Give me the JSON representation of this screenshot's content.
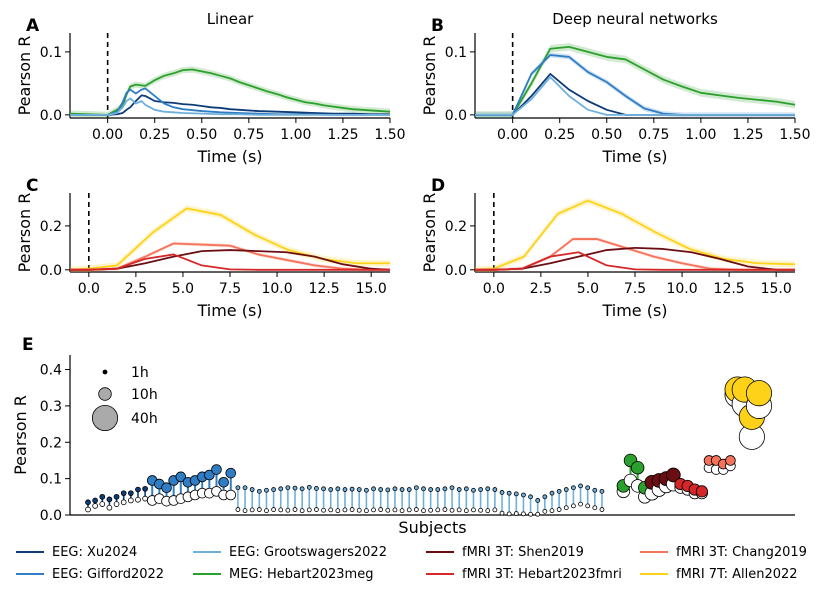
{
  "colors": {
    "EEG: Xu2024": "#0d3c78",
    "EEG: Gifford2022": "#2f7dc4",
    "EEG: Grootswagers2022": "#6fb0db",
    "MEG: Hebart2023meg": "#2ca02c",
    "fMRI 3T: Shen2019": "#6b0e14",
    "fMRI 3T: Hebart2023fmri": "#d62728",
    "fMRI 3T: Chang2019": "#f4735a",
    "fMRI 7T: Allen2022": "#ffd21a"
  },
  "legend": [
    "EEG: Xu2024",
    "EEG: Gifford2022",
    "EEG: Grootswagers2022",
    "MEG: Hebart2023meg",
    "fMRI 3T: Shen2019",
    "fMRI 3T: Hebart2023fmri",
    "fMRI 3T: Chang2019",
    "fMRI 7T: Allen2022"
  ],
  "chart_data": [
    {
      "panel": "A",
      "type": "line",
      "title": "Linear",
      "xlabel": "Time (s)",
      "ylabel": "Pearson R",
      "xlim": [
        -0.2,
        1.5
      ],
      "ylim": [
        -0.005,
        0.13
      ],
      "xticks": [
        0.0,
        0.25,
        0.5,
        0.75,
        1.0,
        1.25,
        1.5
      ],
      "xticklabels": [
        "0.00",
        "0.25",
        "0.50",
        "0.75",
        "1.00",
        "1.25",
        "1.50"
      ],
      "yticks": [
        0.0,
        0.1
      ],
      "yticklabels": [
        "0.0",
        "0.1"
      ],
      "vline": 0.0,
      "series": [
        {
          "name": "MEG: Hebart2023meg",
          "x": [
            -0.2,
            -0.1,
            0,
            0.05,
            0.08,
            0.1,
            0.12,
            0.15,
            0.2,
            0.25,
            0.3,
            0.35,
            0.4,
            0.45,
            0.5,
            0.55,
            0.6,
            0.65,
            0.7,
            0.75,
            0.8,
            0.85,
            0.9,
            0.95,
            1.0,
            1.05,
            1.1,
            1.15,
            1.2,
            1.25,
            1.3,
            1.35,
            1.4,
            1.45,
            1.5
          ],
          "y": [
            0.002,
            0.001,
            0,
            0.008,
            0.015,
            0.032,
            0.045,
            0.048,
            0.046,
            0.055,
            0.062,
            0.066,
            0.071,
            0.072,
            0.069,
            0.066,
            0.062,
            0.058,
            0.052,
            0.047,
            0.042,
            0.037,
            0.033,
            0.028,
            0.024,
            0.02,
            0.018,
            0.015,
            0.013,
            0.011,
            0.009,
            0.008,
            0.007,
            0.006,
            0.005
          ],
          "band": 0.005
        },
        {
          "name": "EEG: Xu2024",
          "x": [
            -0.2,
            -0.1,
            0,
            0.05,
            0.08,
            0.1,
            0.12,
            0.15,
            0.18,
            0.2,
            0.25,
            0.3,
            0.35,
            0.4,
            0.45,
            0.5,
            0.55,
            0.6,
            0.65,
            0.7,
            0.8,
            0.9,
            1.0,
            1.1,
            1.2,
            1.3,
            1.4,
            1.5
          ],
          "y": [
            0,
            0,
            0,
            0.001,
            0.003,
            0.008,
            0.012,
            0.022,
            0.031,
            0.03,
            0.022,
            0.02,
            0.019,
            0.017,
            0.016,
            0.014,
            0.012,
            0.011,
            0.009,
            0.008,
            0.006,
            0.005,
            0.004,
            0.003,
            0.002,
            0.002,
            0.001,
            0.001
          ]
        },
        {
          "name": "EEG: Gifford2022",
          "x": [
            -0.2,
            -0.1,
            0,
            0.05,
            0.08,
            0.1,
            0.12,
            0.15,
            0.18,
            0.2,
            0.25,
            0.3,
            0.35,
            0.4,
            0.5,
            0.6,
            0.7,
            0.8,
            0.9,
            1.0,
            1.2,
            1.5
          ],
          "y": [
            0,
            0,
            0,
            0.005,
            0.02,
            0.035,
            0.04,
            0.034,
            0.04,
            0.042,
            0.03,
            0.018,
            0.012,
            0.009,
            0.006,
            0.004,
            0.003,
            0.002,
            0.001,
            0.001,
            0,
            0
          ]
        },
        {
          "name": "EEG: Grootswagers2022",
          "x": [
            -0.2,
            -0.1,
            0,
            0.05,
            0.08,
            0.1,
            0.12,
            0.15,
            0.18,
            0.2,
            0.25,
            0.3,
            0.35,
            0.4,
            0.5,
            0.6,
            0.7,
            0.8,
            1.0,
            1.2,
            1.5
          ],
          "y": [
            0,
            0,
            0,
            0.003,
            0.012,
            0.022,
            0.026,
            0.018,
            0.022,
            0.016,
            0.008,
            0.005,
            0.004,
            0.003,
            0.002,
            0.001,
            0.001,
            0,
            0,
            0,
            0
          ]
        }
      ]
    },
    {
      "panel": "B",
      "type": "line",
      "title": "Deep neural networks",
      "xlabel": "Time (s)",
      "ylabel": "Pearson R",
      "xlim": [
        -0.2,
        1.5
      ],
      "ylim": [
        -0.005,
        0.13
      ],
      "xticks": [
        0.0,
        0.25,
        0.5,
        0.75,
        1.0,
        1.25,
        1.5
      ],
      "xticklabels": [
        "0.00",
        "0.25",
        "0.50",
        "0.75",
        "1.00",
        "1.25",
        "1.50"
      ],
      "yticks": [
        0.0,
        0.1
      ],
      "yticklabels": [
        "0.0",
        "0.1"
      ],
      "vline": 0.0,
      "series": [
        {
          "name": "MEG: Hebart2023meg",
          "x": [
            -0.2,
            0,
            0.1,
            0.2,
            0.3,
            0.4,
            0.5,
            0.6,
            0.7,
            0.8,
            0.9,
            1.0,
            1.1,
            1.2,
            1.3,
            1.4,
            1.5
          ],
          "y": [
            0,
            0,
            0.05,
            0.105,
            0.108,
            0.1,
            0.092,
            0.088,
            0.072,
            0.056,
            0.045,
            0.035,
            0.031,
            0.027,
            0.024,
            0.021,
            0.016
          ],
          "band": 0.006
        },
        {
          "name": "EEG: Gifford2022",
          "x": [
            -0.2,
            0,
            0.1,
            0.2,
            0.3,
            0.4,
            0.5,
            0.6,
            0.7,
            0.8,
            0.9,
            1.0,
            1.5
          ],
          "y": [
            0,
            0,
            0.065,
            0.095,
            0.092,
            0.068,
            0.052,
            0.03,
            0.01,
            0.002,
            0,
            0,
            0
          ],
          "band": 0.004
        },
        {
          "name": "EEG: Xu2024",
          "x": [
            -0.2,
            0,
            0.1,
            0.2,
            0.3,
            0.4,
            0.5,
            0.6,
            0.7,
            0.8,
            1.0,
            1.5
          ],
          "y": [
            0,
            0,
            0.03,
            0.065,
            0.04,
            0.022,
            0.008,
            0,
            0,
            0,
            0,
            0
          ]
        },
        {
          "name": "EEG: Grootswagers2022",
          "x": [
            -0.2,
            0,
            0.1,
            0.2,
            0.3,
            0.4,
            0.5,
            0.6,
            0.8,
            1.0,
            1.5
          ],
          "y": [
            0,
            0,
            0.025,
            0.06,
            0.03,
            0.008,
            0,
            0,
            0,
            0,
            0
          ]
        }
      ]
    },
    {
      "panel": "C",
      "type": "line",
      "title": "",
      "xlabel": "Time (s)",
      "ylabel": "Pearson R",
      "xlim": [
        -1.0,
        16.0
      ],
      "ylim": [
        -0.01,
        0.35
      ],
      "xticks": [
        0.0,
        2.5,
        5.0,
        7.5,
        10.0,
        12.5,
        15.0
      ],
      "xticklabels": [
        "0.0",
        "2.5",
        "5.0",
        "7.5",
        "10.0",
        "12.5",
        "15.0"
      ],
      "yticks": [
        0.0,
        0.2
      ],
      "yticklabels": [
        "0.0",
        "0.2"
      ],
      "vline": 0.0,
      "series": [
        {
          "name": "fMRI 7T: Allen2022",
          "x": [
            -1,
            0,
            1.5,
            3.4,
            5.2,
            7,
            8.8,
            10.6,
            12.4,
            14.2,
            16
          ],
          "y": [
            0,
            0.005,
            0.02,
            0.17,
            0.28,
            0.25,
            0.16,
            0.09,
            0.05,
            0.03,
            0.03
          ],
          "band": 0.015
        },
        {
          "name": "fMRI 3T: Chang2019",
          "x": [
            -1,
            0,
            1.5,
            3,
            4.5,
            6,
            7.5,
            9,
            10.5,
            12,
            13.5,
            15,
            16
          ],
          "y": [
            0,
            0,
            0.005,
            0.06,
            0.12,
            0.115,
            0.11,
            0.07,
            0.045,
            0.02,
            0.005,
            0,
            0
          ],
          "band": 0.008
        },
        {
          "name": "fMRI 3T: Shen2019",
          "x": [
            -1,
            0,
            1.5,
            3,
            4.5,
            6,
            7.5,
            9,
            10.5,
            12,
            13.5,
            15,
            16
          ],
          "y": [
            0,
            0,
            0.005,
            0.03,
            0.06,
            0.085,
            0.09,
            0.085,
            0.08,
            0.06,
            0.025,
            0.005,
            0
          ]
        },
        {
          "name": "fMRI 3T: Hebart2023fmri",
          "x": [
            -1,
            0,
            1.5,
            3,
            4.5,
            6,
            7.5,
            9,
            10.5,
            12,
            16
          ],
          "y": [
            0,
            0,
            0.005,
            0.05,
            0.07,
            0.02,
            0.002,
            0,
            0,
            0,
            0
          ]
        }
      ]
    },
    {
      "panel": "D",
      "type": "line",
      "title": "",
      "xlabel": "Time (s)",
      "ylabel": "Pearson R",
      "xlim": [
        -1.0,
        16.0
      ],
      "ylim": [
        -0.01,
        0.35
      ],
      "xticks": [
        0.0,
        2.5,
        5.0,
        7.5,
        10.0,
        12.5,
        15.0
      ],
      "xticklabels": [
        "0.0",
        "2.5",
        "5.0",
        "7.5",
        "10.0",
        "12.5",
        "15.0"
      ],
      "yticks": [
        0.0,
        0.2
      ],
      "yticklabels": [
        "0.0",
        "0.2"
      ],
      "vline": 0.0,
      "series": [
        {
          "name": "fMRI 7T: Allen2022",
          "x": [
            -1,
            0,
            1.6,
            3.4,
            5.0,
            6.8,
            8.6,
            10.4,
            12.2,
            14,
            16
          ],
          "y": [
            0,
            0.005,
            0.06,
            0.255,
            0.315,
            0.255,
            0.17,
            0.095,
            0.05,
            0.03,
            0.025
          ],
          "band": 0.015
        },
        {
          "name": "fMRI 3T: Chang2019",
          "x": [
            -1,
            0,
            1.5,
            3,
            4.2,
            5.5,
            7,
            8.5,
            10,
            11.5,
            13,
            16
          ],
          "y": [
            0,
            0,
            0.005,
            0.06,
            0.14,
            0.14,
            0.1,
            0.06,
            0.03,
            0.005,
            0,
            0
          ],
          "band": 0.008
        },
        {
          "name": "fMRI 3T: Shen2019",
          "x": [
            -1,
            0,
            1.5,
            3,
            4.5,
            6,
            7.5,
            9,
            10.5,
            12,
            13.5,
            15,
            16
          ],
          "y": [
            0,
            0,
            0.005,
            0.03,
            0.06,
            0.09,
            0.1,
            0.095,
            0.08,
            0.05,
            0.015,
            0,
            0
          ]
        },
        {
          "name": "fMRI 3T: Hebart2023fmri",
          "x": [
            -1,
            0,
            1.5,
            3,
            4.5,
            6,
            7.5,
            9,
            10.5,
            16
          ],
          "y": [
            0,
            0,
            0.005,
            0.06,
            0.08,
            0.02,
            0.002,
            0,
            0,
            0
          ]
        }
      ]
    },
    {
      "panel": "E",
      "type": "scatter",
      "title": "",
      "xlabel": "Subjects",
      "ylabel": "Pearson R",
      "ylim": [
        0.0,
        0.44
      ],
      "yticks": [
        0.0,
        0.1,
        0.2,
        0.3,
        0.4
      ],
      "yticklabels": [
        "0.0",
        "0.1",
        "0.2",
        "0.3",
        "0.4"
      ],
      "size_legend": [
        {
          "label": "1h",
          "hours": 1
        },
        {
          "label": "10h",
          "hours": 10
        },
        {
          "label": "40h",
          "hours": 40
        }
      ],
      "groups": [
        {
          "name": "EEG: Xu2024",
          "hours": 1.5,
          "dnn": [
            0.035,
            0.04,
            0.05,
            0.043,
            0.05,
            0.06,
            0.06,
            0.07,
            0.072
          ],
          "linear": [
            0.015,
            0.025,
            0.03,
            0.02,
            0.03,
            0.035,
            0.04,
            0.042,
            0.045
          ]
        },
        {
          "name": "EEG: Gifford2022",
          "hours": 6,
          "dnn": [
            0.095,
            0.085,
            0.075,
            0.095,
            0.105,
            0.09,
            0.095,
            0.105,
            0.11,
            0.125,
            0.09,
            0.115
          ],
          "linear": [
            0.04,
            0.045,
            0.038,
            0.04,
            0.045,
            0.05,
            0.055,
            0.06,
            0.06,
            0.065,
            0.055,
            0.055
          ]
        },
        {
          "name": "EEG: Grootswagers2022",
          "hours": 1,
          "dnn": [
            0.075,
            0.075,
            0.07,
            0.065,
            0.068,
            0.07,
            0.072,
            0.075,
            0.074,
            0.072,
            0.076,
            0.073,
            0.072,
            0.07,
            0.072,
            0.07,
            0.071,
            0.07,
            0.068,
            0.072,
            0.07,
            0.069,
            0.072,
            0.07,
            0.07,
            0.075,
            0.072,
            0.07,
            0.07,
            0.072,
            0.075,
            0.07,
            0.072,
            0.068,
            0.07,
            0.072,
            0.07,
            0.062,
            0.06,
            0.058,
            0.055,
            0.05,
            0.04,
            0.05,
            0.06,
            0.065,
            0.07,
            0.075,
            0.08,
            0.075,
            0.068,
            0.065
          ],
          "linear": [
            0.015,
            0.012,
            0.014,
            0.015,
            0.012,
            0.015,
            0.014,
            0.013,
            0.015,
            0.012,
            0.014,
            0.015,
            0.013,
            0.014,
            0.012,
            0.014,
            0.015,
            0.013,
            0.012,
            0.014,
            0.015,
            0.013,
            0.014,
            0.012,
            0.014,
            0.015,
            0.012,
            0.013,
            0.014,
            0.015,
            0.013,
            0.014,
            0.012,
            0.014,
            0.013,
            0.012,
            0.014,
            0.005,
            0.003,
            0.004,
            0.003,
            0.002,
            0.002,
            0.01,
            0.012,
            0.015,
            0.02,
            0.025,
            0.03,
            0.025,
            0.02,
            0.015
          ]
        },
        {
          "name": "MEG: Hebart2023meg",
          "hours": 10,
          "dnn": [
            0.08,
            0.15,
            0.13,
            0.075
          ],
          "linear": [
            0.065,
            0.095,
            0.08,
            0.05
          ]
        },
        {
          "name": "fMRI 3T: Shen2019",
          "hours": 12,
          "dnn": [
            0.09,
            0.095,
            0.1,
            0.11
          ],
          "linear": [
            0.06,
            0.07,
            0.08,
            0.085
          ]
        },
        {
          "name": "fMRI 3T: Hebart2023fmri",
          "hours": 8,
          "dnn": [
            0.085,
            0.08,
            0.07,
            0.065
          ],
          "linear": [
            0.075,
            0.07,
            0.06,
            0.06
          ]
        },
        {
          "name": "fMRI 3T: Chang2019",
          "hours": 6,
          "dnn": [
            0.15,
            0.15,
            0.14,
            0.15
          ],
          "linear": [
            0.13,
            0.125,
            0.125,
            0.135
          ]
        },
        {
          "name": "fMRI 7T: Allen2022",
          "hours": 40,
          "dnn": [
            0.345,
            0.345,
            0.27,
            0.335
          ],
          "linear": [
            0.33,
            0.305,
            0.215,
            0.3
          ]
        }
      ]
    }
  ]
}
